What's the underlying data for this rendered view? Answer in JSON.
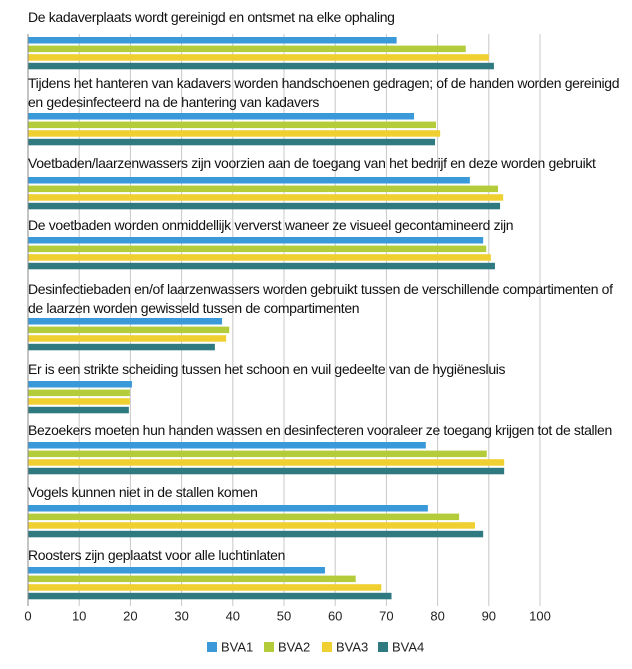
{
  "chart_data": {
    "type": "bar",
    "orientation": "horizontal",
    "categories": [
      "De kadaverplaats wordt gereinigd en ontsmet na elke ophaling",
      "Tijdens het hanteren van kadavers worden handschoenen gedragen; of de handen worden gereinigd en gedesinfecteerd na de hantering van kadavers",
      "Voetbaden/laarzenwassers zijn voorzien aan de toegang van het bedrijf en deze worden gebruikt",
      "De voetbaden worden onmiddellijk ververst waneer ze visueel gecontamineerd zijn",
      "Desinfectiebaden en/of laarzenwassers worden gebruikt tussen de verschillende compartimenten of de laarzen worden gewisseld tussen de compartimenten",
      "Er is een strikte scheiding tussen het schoon en vuil gedeelte van de hygiënesluis",
      "Bezoekers moeten hun handen wassen en desinfecteren vooraleer ze toegang krijgen tot de stallen",
      "Vogels kunnen niet in de stallen komen",
      "Roosters zijn geplaatst voor alle luchtinlaten"
    ],
    "series": [
      {
        "name": "BVA1",
        "color": "#3a9ad9",
        "values": [
          72,
          75.4,
          86.3,
          88.9,
          37.9,
          20.3,
          77.7,
          78.1,
          58
        ]
      },
      {
        "name": "BVA2",
        "color": "#b5cc3a",
        "values": [
          85.5,
          79.7,
          91.8,
          89.5,
          39.3,
          19.9,
          89.6,
          84.2,
          64
        ]
      },
      {
        "name": "BVA3",
        "color": "#f0d030",
        "values": [
          90,
          80.5,
          92.8,
          90.4,
          38.7,
          19.9,
          93,
          87.3,
          69
        ]
      },
      {
        "name": "BVA4",
        "color": "#2e7a80",
        "values": [
          91,
          79.5,
          92.2,
          91.2,
          36.5,
          19.7,
          93,
          88.9,
          71
        ]
      }
    ],
    "xlim": [
      0,
      100
    ],
    "xticks": [
      0,
      10,
      20,
      30,
      40,
      50,
      60,
      70,
      80,
      90,
      100
    ],
    "grid": true,
    "legend": "bottom"
  }
}
